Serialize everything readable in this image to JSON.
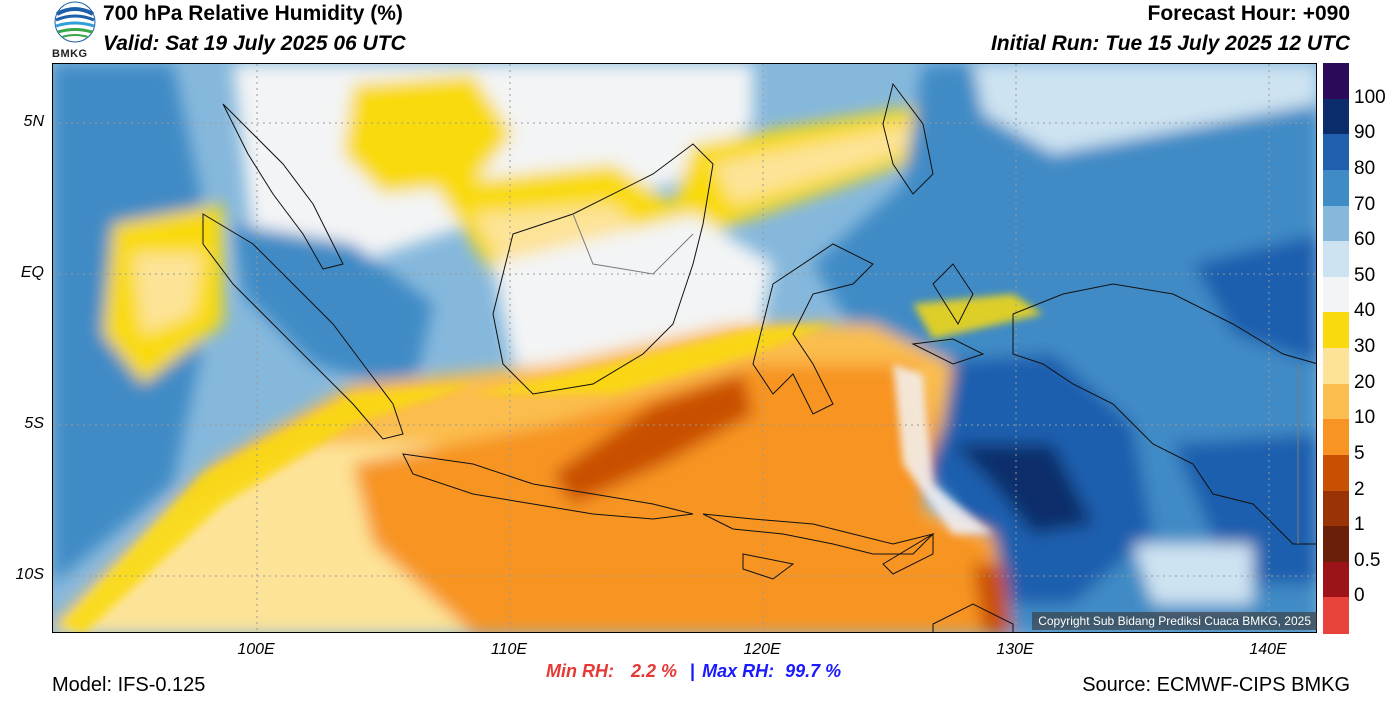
{
  "header": {
    "title": "700 hPa Relative Humidity (%)",
    "valid": "Valid: Sat 19 July 2025 06 UTC",
    "forecast_hour": "Forecast Hour: +090",
    "initial_run": "Initial Run: Tue 15 July 2025 12 UTC",
    "logo_text": "BMKG"
  },
  "axes": {
    "lat_labels": [
      "5N",
      "EQ",
      "5S",
      "10S"
    ],
    "lon_labels": [
      "100E",
      "110E",
      "120E",
      "130E",
      "140E"
    ]
  },
  "legend": {
    "labels": [
      "100",
      "90",
      "80",
      "70",
      "60",
      "50",
      "40",
      "30",
      "20",
      "10",
      "5",
      "2",
      "1",
      "0.5",
      "0"
    ],
    "colors": [
      "#2b0a5a",
      "#0b2d6b",
      "#1f5fae",
      "#3f8bc6",
      "#86b8dc",
      "#cde3f1",
      "#f3f4f5",
      "#f9da0e",
      "#fde397",
      "#fbbd4e",
      "#f79423",
      "#c94f03",
      "#9a3406",
      "#6a1f08",
      "#9c1419",
      "#e8433c"
    ]
  },
  "stats": {
    "min_label": "Min RH:",
    "min_value": "2.2 %",
    "separator": "|",
    "max_label": "Max RH:",
    "max_value": "99.7 %"
  },
  "footer": {
    "model": "Model: IFS-0.125",
    "source": "Source: ECMWF-CIPS BMKG",
    "copyright": "Copyright Sub Bidang Prediksi Cuaca BMKG, 2025"
  }
}
